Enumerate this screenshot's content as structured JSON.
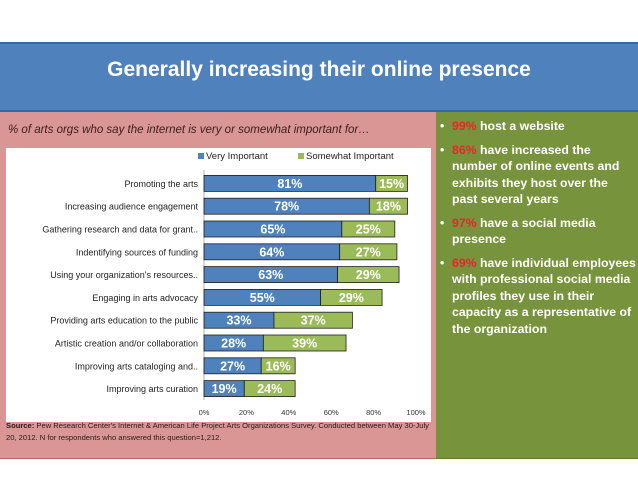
{
  "slide": {
    "title": "Generally increasing their online presence",
    "subtitle": "% of arts orgs who say the internet is very or somewhat important for…",
    "source_label": "Source:",
    "source_text": "Pew Research Center's Internet & American Life Project Arts Organizations Survey. Conducted between May 30-July 20, 2012. N for respondents who answered this question=1,212."
  },
  "bullets": [
    {
      "pct": "99%",
      "text": " host a website"
    },
    {
      "pct": "86%",
      "text": " have increased the number of online events and exhibits they host over the past several years"
    },
    {
      "pct": "97%",
      "text": " have a social media presence"
    },
    {
      "pct": "69%",
      "text": " have individual employees with professional social media profiles they use in their capacity as a representative of the organization"
    }
  ],
  "colors": {
    "very_important": "#4f81bd",
    "somewhat_important": "#9bbb59",
    "pct_highlight": "#e8262a"
  },
  "chart_data": {
    "type": "bar",
    "orientation": "horizontal",
    "stacked": true,
    "categories": [
      "Promoting the arts",
      "Increasing audience engagement",
      "Gathering research and data for grant..",
      "Indentifying sources of funding",
      "Using your organization's resources..",
      "Engaging in arts advocacy",
      "Providing arts education to the public",
      "Artistic creation and/or collaboration",
      "Improving arts cataloging and..",
      "Improving arts curation"
    ],
    "series": [
      {
        "name": "Very Important",
        "values": [
          81,
          78,
          65,
          64,
          63,
          55,
          33,
          28,
          27,
          19
        ]
      },
      {
        "name": "Somewhat Important",
        "values": [
          15,
          18,
          25,
          27,
          29,
          29,
          37,
          39,
          16,
          24
        ]
      }
    ],
    "xlim": [
      0,
      100
    ],
    "xticks": [
      "0%",
      "20%",
      "40%",
      "60%",
      "80%",
      "100%"
    ],
    "legend": "top"
  }
}
